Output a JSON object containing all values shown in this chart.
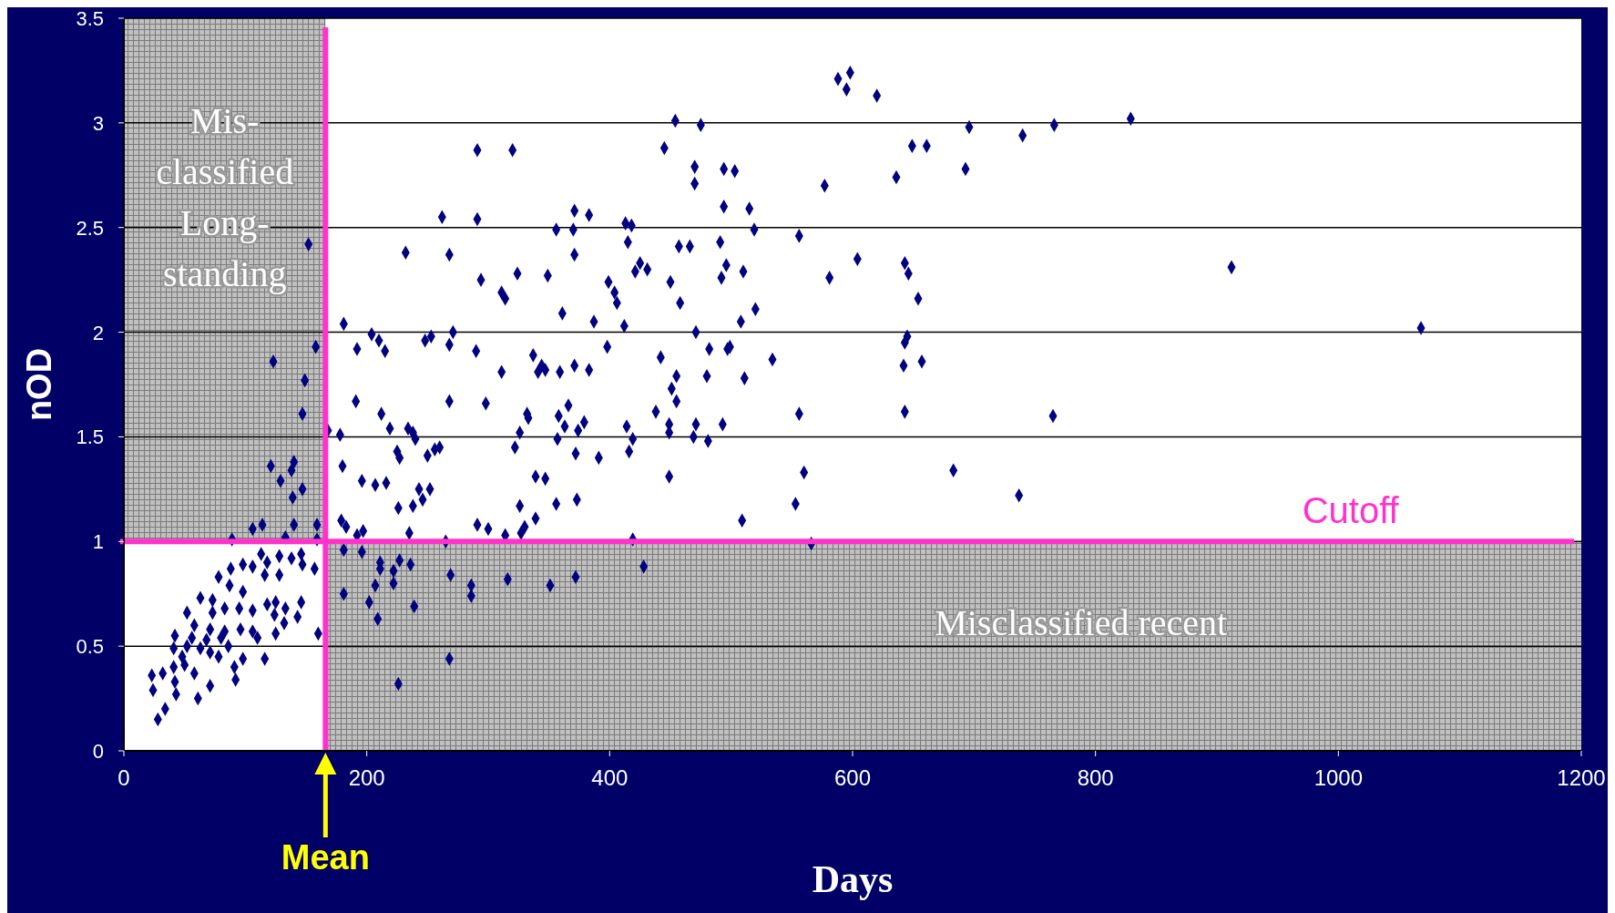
{
  "chart_data": {
    "type": "scatter",
    "xlabel": "Days",
    "ylabel": "nOD",
    "color": "#000080",
    "marker": "diamond",
    "grid": "y",
    "xlim": [
      0,
      1200
    ],
    "xticks": [
      0,
      200,
      400,
      600,
      800,
      1000,
      1200
    ],
    "ylim": [
      0,
      3.5
    ],
    "yticks": [
      0,
      0.5,
      1,
      1.5,
      2,
      2.5,
      3,
      3.5
    ],
    "ref_lines": [
      {
        "axis": "x",
        "value": 166,
        "label": "Mean",
        "color": "#ff33cc"
      },
      {
        "axis": "y",
        "value": 1,
        "label": "Cutoff",
        "color": "#ff33cc"
      }
    ],
    "bands": [
      {
        "axis": "x",
        "from": 0,
        "to": 166,
        "label": "Mis-classified Long-standing",
        "color": "#c0c0c0"
      },
      {
        "axis": "y",
        "from": 0,
        "to": 1,
        "label": "Misclassified recent",
        "color": "#c0c0c0"
      }
    ],
    "x": [
      588,
      598,
      595,
      620,
      454,
      475,
      766,
      829,
      696,
      740,
      291,
      320,
      445,
      649,
      661,
      470,
      494,
      503,
      693,
      470,
      636,
      577,
      371,
      383,
      262,
      291,
      494,
      515,
      413,
      418,
      356,
      370,
      556,
      519,
      415,
      457,
      466,
      491,
      232,
      268,
      371,
      425,
      431,
      421,
      496,
      510,
      450,
      399,
      349,
      324,
      294,
      311,
      314,
      404,
      406,
      458,
      492,
      581,
      604,
      643,
      646,
      654,
      520,
      508,
      361,
      387,
      412,
      912,
      1068,
      181,
      248,
      253,
      268,
      271,
      204,
      210,
      215,
      192,
      290,
      337,
      398,
      442,
      471,
      482,
      497,
      499,
      534,
      645,
      643,
      642,
      657,
      311,
      341,
      344,
      347,
      359,
      371,
      383,
      455,
      480,
      511,
      451,
      455,
      191,
      268,
      298,
      366,
      556,
      765,
      643,
      438,
      358,
      333,
      332,
      379,
      414,
      419,
      449,
      449,
      471,
      493,
      469,
      481,
      363,
      326,
      219,
      212,
      234,
      238,
      240,
      260,
      322,
      357,
      374,
      168,
      178,
      416,
      372,
      391,
      225,
      227,
      250,
      256,
      180,
      560,
      683,
      339,
      347,
      449,
      196,
      207,
      216,
      243,
      252,
      238,
      246,
      226,
      737,
      373,
      356,
      326,
      339,
      509,
      553,
      179,
      183,
      192,
      197,
      235,
      265,
      291,
      300,
      327,
      330,
      314,
      419,
      566,
      28,
      34,
      24,
      23,
      32,
      42,
      43,
      61,
      71,
      92,
      41,
      50,
      58,
      48,
      41,
      52,
      63,
      71,
      78,
      91,
      98,
      116,
      42,
      56,
      68,
      80,
      86,
      58,
      71,
      83,
      96,
      106,
      110,
      125,
      52,
      73,
      83,
      95,
      106,
      118,
      125,
      133,
      146,
      143,
      132,
      124,
      63,
      73,
      87,
      98,
      78,
      88,
      98,
      106,
      116,
      128,
      118,
      128,
      138,
      146,
      157,
      147,
      113,
      160,
      149,
      147,
      121,
      140,
      138,
      129,
      147,
      139,
      140,
      114,
      106,
      133,
      89,
      159,
      159,
      152,
      158,
      123,
      181,
      202,
      209,
      207,
      211,
      211,
      222,
      222,
      227,
      236,
      239,
      269,
      286,
      286,
      316,
      351,
      268,
      226,
      181,
      196,
      428,
      372
    ],
    "values": [
      3.21,
      3.24,
      3.16,
      3.13,
      3.01,
      2.99,
      2.99,
      3.02,
      2.98,
      2.94,
      2.87,
      2.87,
      2.88,
      2.89,
      2.89,
      2.79,
      2.78,
      2.77,
      2.78,
      2.71,
      2.74,
      2.7,
      2.58,
      2.56,
      2.55,
      2.54,
      2.6,
      2.59,
      2.52,
      2.51,
      2.49,
      2.49,
      2.46,
      2.49,
      2.43,
      2.41,
      2.41,
      2.43,
      2.38,
      2.37,
      2.37,
      2.33,
      2.3,
      2.29,
      2.32,
      2.29,
      2.24,
      2.24,
      2.27,
      2.28,
      2.25,
      2.19,
      2.16,
      2.19,
      2.14,
      2.14,
      2.26,
      2.26,
      2.35,
      2.33,
      2.28,
      2.16,
      2.11,
      2.05,
      2.09,
      2.05,
      2.03,
      2.31,
      2.02,
      2.04,
      1.96,
      1.98,
      1.94,
      2.0,
      1.99,
      1.96,
      1.91,
      1.92,
      1.91,
      1.89,
      1.93,
      1.88,
      2.0,
      1.92,
      1.92,
      1.93,
      1.87,
      1.98,
      1.95,
      1.84,
      1.86,
      1.81,
      1.81,
      1.84,
      1.82,
      1.81,
      1.84,
      1.82,
      1.79,
      1.79,
      1.78,
      1.73,
      1.67,
      1.67,
      1.67,
      1.66,
      1.65,
      1.61,
      1.6,
      1.62,
      1.62,
      1.6,
      1.59,
      1.61,
      1.57,
      1.55,
      1.49,
      1.56,
      1.52,
      1.56,
      1.56,
      1.5,
      1.48,
      1.55,
      1.52,
      1.54,
      1.61,
      1.54,
      1.52,
      1.49,
      1.45,
      1.45,
      1.49,
      1.53,
      1.53,
      1.51,
      1.43,
      1.42,
      1.4,
      1.43,
      1.4,
      1.41,
      1.44,
      1.36,
      1.33,
      1.34,
      1.31,
      1.3,
      1.31,
      1.29,
      1.27,
      1.28,
      1.25,
      1.25,
      1.17,
      1.2,
      1.16,
      1.22,
      1.2,
      1.18,
      1.17,
      1.11,
      1.1,
      1.18,
      1.1,
      1.07,
      1.03,
      1.05,
      1.04,
      1.0,
      1.08,
      1.06,
      1.04,
      1.07,
      1.03,
      1.01,
      0.99,
      0.15,
      0.2,
      0.29,
      0.36,
      0.37,
      0.33,
      0.27,
      0.25,
      0.31,
      0.34,
      0.4,
      0.41,
      0.37,
      0.45,
      0.49,
      0.5,
      0.49,
      0.47,
      0.45,
      0.4,
      0.44,
      0.44,
      0.55,
      0.54,
      0.53,
      0.54,
      0.5,
      0.6,
      0.58,
      0.57,
      0.58,
      0.57,
      0.54,
      0.56,
      0.66,
      0.66,
      0.68,
      0.68,
      0.67,
      0.7,
      0.71,
      0.68,
      0.71,
      0.64,
      0.61,
      0.65,
      0.73,
      0.72,
      0.79,
      0.76,
      0.83,
      0.87,
      0.89,
      0.88,
      0.84,
      0.84,
      0.9,
      0.93,
      0.92,
      0.94,
      0.87,
      0.89,
      0.94,
      0.56,
      1.77,
      1.61,
      1.36,
      1.38,
      1.34,
      1.29,
      1.25,
      1.21,
      1.08,
      1.08,
      1.06,
      1.02,
      1.01,
      1.08,
      1.01,
      2.42,
      1.93,
      1.86,
      0.75,
      0.71,
      0.63,
      0.79,
      0.9,
      0.87,
      0.8,
      0.86,
      0.91,
      0.89,
      0.69,
      0.84,
      0.79,
      0.74,
      0.82,
      0.79,
      0.44,
      0.32,
      0.96,
      0.95,
      0.88,
      0.83
    ]
  }
}
